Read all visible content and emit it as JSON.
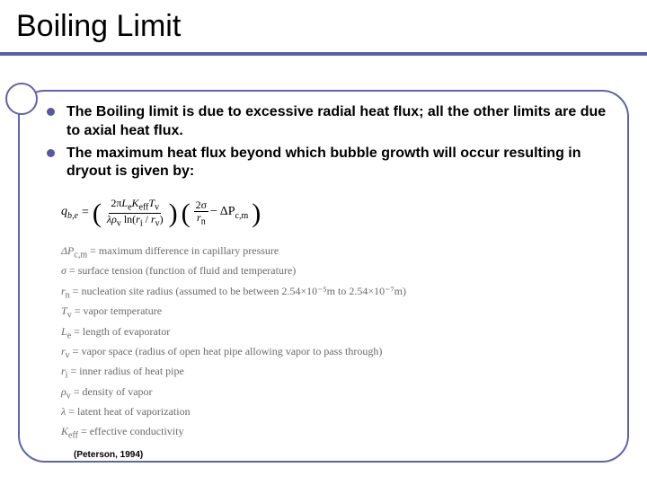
{
  "title": "Boiling Limit",
  "bullets": [
    "The Boiling limit is due to excessive radial heat flux; all the other limits are due to axial heat flux.",
    "The maximum heat flux beyond which bubble growth will occur resulting in dryout is given by:"
  ],
  "equation": {
    "lhs": "q",
    "lhs_sub": "b,e",
    "frac1_num_parts": [
      "2π",
      "L",
      "e",
      "K",
      "eff",
      "T",
      "v"
    ],
    "frac1_den_parts": [
      "λ",
      "ρ",
      "v",
      " ln(",
      "r",
      "i",
      " / ",
      "r",
      "v",
      ")"
    ],
    "frac2_num_parts": [
      "2σ"
    ],
    "frac2_den_parts": [
      "r",
      "n"
    ],
    "tail": " − ΔP",
    "tail_sub": "c,m"
  },
  "definitions": [
    {
      "sym": "ΔP",
      "sub": "c,m",
      "desc": " = maximum difference in capillary pressure"
    },
    {
      "sym": "σ",
      "sub": "",
      "desc": " = surface tension (function of fluid and temperature)"
    },
    {
      "sym": "r",
      "sub": "n",
      "desc": " = nucleation site radius (assumed to be between 2.54×10⁻⁵m to 2.54×10⁻⁷m)"
    },
    {
      "sym": "T",
      "sub": "v",
      "desc": " = vapor temperature"
    },
    {
      "sym": "L",
      "sub": "e",
      "desc": " = length of evaporator"
    },
    {
      "sym": "r",
      "sub": "v",
      "desc": " = vapor space (radius of open heat pipe allowing vapor to pass through)"
    },
    {
      "sym": "r",
      "sub": "i",
      "desc": " = inner radius of heat pipe"
    },
    {
      "sym": "ρ",
      "sub": "v",
      "desc": " = density of vapor"
    },
    {
      "sym": "λ",
      "sub": "",
      "desc": " = latent heat of vaporization"
    },
    {
      "sym": "K",
      "sub": "eff",
      "desc": " = effective conductivity"
    }
  ],
  "citation": "(Peterson, 1994)",
  "colors": {
    "accent": "#5a5fa8",
    "frame": "#6063a8",
    "def_text": "#6a6a6a"
  }
}
